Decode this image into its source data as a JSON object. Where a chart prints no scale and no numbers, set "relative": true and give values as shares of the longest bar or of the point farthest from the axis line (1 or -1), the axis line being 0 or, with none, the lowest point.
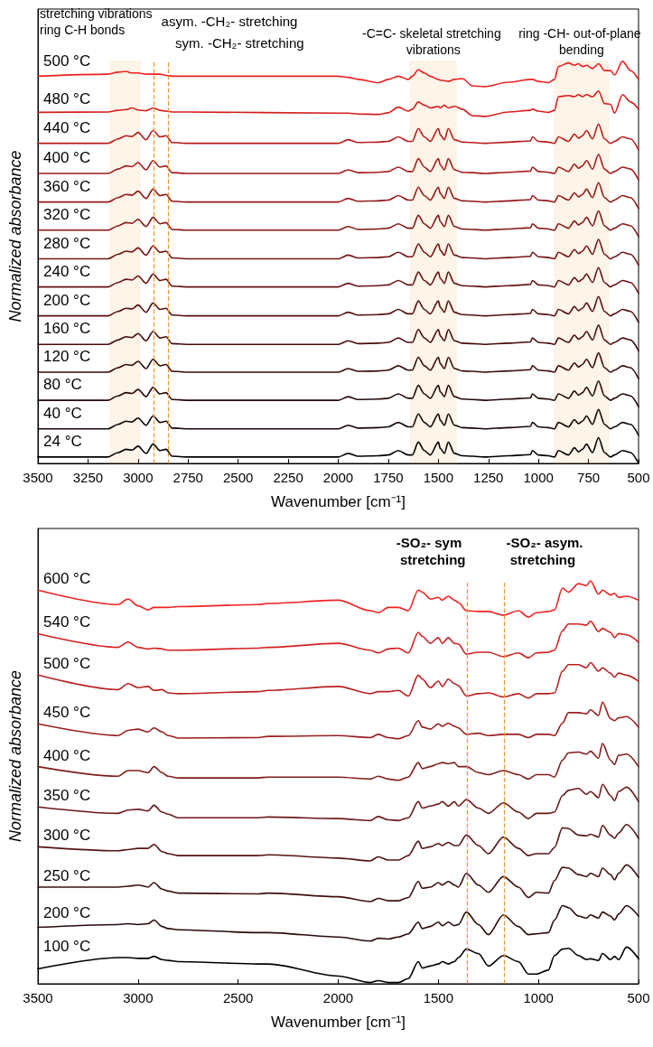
{
  "chart_data": [
    {
      "type": "line",
      "xlabel": "Wavenumber [cm⁻¹]",
      "ylabel": "Normalized absorbance",
      "relative": true,
      "tick_labels": "x",
      "marker": "none",
      "xlim": [
        3500,
        500
      ],
      "xticks": [
        3500,
        3250,
        3000,
        2750,
        2500,
        2250,
        2000,
        1750,
        1500,
        1250,
        1000,
        750,
        500
      ],
      "x": [
        3500,
        3150,
        3100,
        3060,
        3030,
        3000,
        2960,
        2925,
        2890,
        2860,
        2830,
        2750,
        2000,
        1950,
        1900,
        1800,
        1750,
        1700,
        1650,
        1630,
        1600,
        1570,
        1540,
        1500,
        1490,
        1470,
        1450,
        1420,
        1380,
        1330,
        1270,
        1150,
        1040,
        1030,
        1000,
        950,
        920,
        900,
        850,
        820,
        800,
        780,
        760,
        730,
        700,
        670,
        640,
        620,
        580,
        540,
        500
      ],
      "series": [
        {
          "name": "500 °C",
          "color": "#ee2020",
          "values": [
            0.963,
            0.968,
            0.973,
            0.975,
            0.971,
            0.971,
            0.968,
            0.968,
            0.968,
            0.965,
            0.963,
            0.963,
            0.963,
            0.96,
            0.955,
            0.947,
            0.955,
            0.963,
            0.955,
            0.963,
            0.979,
            0.971,
            0.963,
            0.955,
            0.953,
            0.952,
            0.95,
            0.955,
            0.957,
            0.939,
            0.937,
            0.948,
            0.955,
            0.955,
            0.95,
            0.947,
            0.955,
            0.987,
            0.996,
            0.99,
            0.994,
            0.987,
            0.99,
            0.982,
            0.994,
            0.977,
            0.977,
            0.966,
            1.0,
            0.977,
            0.955
          ]
        },
        {
          "name": "480 °C",
          "color": "#d41e1e",
          "values": [
            0.873,
            0.874,
            0.878,
            0.88,
            0.884,
            0.879,
            0.877,
            0.884,
            0.878,
            0.876,
            0.874,
            0.874,
            0.871,
            0.871,
            0.869,
            0.868,
            0.872,
            0.886,
            0.876,
            0.881,
            0.899,
            0.891,
            0.884,
            0.888,
            0.884,
            0.891,
            0.884,
            0.888,
            0.881,
            0.865,
            0.863,
            0.874,
            0.878,
            0.881,
            0.876,
            0.873,
            0.878,
            0.912,
            0.915,
            0.912,
            0.917,
            0.912,
            0.917,
            0.912,
            0.926,
            0.895,
            0.893,
            0.871,
            0.917,
            0.899,
            0.881
          ]
        },
        {
          "name": "440 °C",
          "color": "#b81c1c",
          "values": [
            0.796,
            0.796,
            0.807,
            0.815,
            0.813,
            0.823,
            0.805,
            0.828,
            0.812,
            0.815,
            0.798,
            0.796,
            0.796,
            0.805,
            0.798,
            0.799,
            0.801,
            0.812,
            0.801,
            0.801,
            0.833,
            0.812,
            0.801,
            0.833,
            0.817,
            0.805,
            0.833,
            0.805,
            0.799,
            0.798,
            0.796,
            0.799,
            0.802,
            0.812,
            0.801,
            0.799,
            0.796,
            0.812,
            0.801,
            0.819,
            0.809,
            0.815,
            0.828,
            0.807,
            0.844,
            0.807,
            0.796,
            0.801,
            0.812,
            0.807,
            0.78
          ]
        },
        {
          "name": "400 °C",
          "color": "#a41a1a",
          "values": [
            0.721,
            0.721,
            0.732,
            0.74,
            0.738,
            0.748,
            0.73,
            0.753,
            0.737,
            0.74,
            0.723,
            0.721,
            0.721,
            0.73,
            0.723,
            0.724,
            0.726,
            0.737,
            0.726,
            0.726,
            0.758,
            0.737,
            0.726,
            0.758,
            0.742,
            0.73,
            0.758,
            0.73,
            0.724,
            0.723,
            0.721,
            0.724,
            0.727,
            0.737,
            0.726,
            0.724,
            0.721,
            0.737,
            0.726,
            0.744,
            0.734,
            0.74,
            0.753,
            0.732,
            0.769,
            0.732,
            0.721,
            0.726,
            0.737,
            0.732,
            0.705
          ]
        },
        {
          "name": "360 °C",
          "color": "#941818",
          "values": [
            0.65,
            0.65,
            0.661,
            0.669,
            0.667,
            0.677,
            0.659,
            0.682,
            0.666,
            0.669,
            0.652,
            0.65,
            0.65,
            0.659,
            0.652,
            0.653,
            0.655,
            0.666,
            0.655,
            0.655,
            0.687,
            0.666,
            0.655,
            0.687,
            0.671,
            0.659,
            0.687,
            0.659,
            0.653,
            0.652,
            0.65,
            0.653,
            0.656,
            0.666,
            0.655,
            0.653,
            0.65,
            0.666,
            0.655,
            0.673,
            0.663,
            0.669,
            0.682,
            0.661,
            0.698,
            0.661,
            0.65,
            0.655,
            0.666,
            0.661,
            0.634
          ]
        },
        {
          "name": "320 °C",
          "color": "#821616",
          "values": [
            0.58,
            0.58,
            0.591,
            0.599,
            0.597,
            0.607,
            0.589,
            0.612,
            0.596,
            0.599,
            0.582,
            0.58,
            0.58,
            0.589,
            0.582,
            0.583,
            0.585,
            0.596,
            0.585,
            0.585,
            0.617,
            0.596,
            0.585,
            0.617,
            0.601,
            0.589,
            0.617,
            0.589,
            0.583,
            0.582,
            0.58,
            0.583,
            0.586,
            0.596,
            0.585,
            0.583,
            0.58,
            0.596,
            0.585,
            0.603,
            0.593,
            0.599,
            0.612,
            0.591,
            0.628,
            0.591,
            0.58,
            0.585,
            0.596,
            0.591,
            0.564
          ]
        },
        {
          "name": "280 °C",
          "color": "#741414",
          "values": [
            0.509,
            0.509,
            0.52,
            0.528,
            0.526,
            0.536,
            0.518,
            0.541,
            0.525,
            0.528,
            0.511,
            0.509,
            0.509,
            0.518,
            0.511,
            0.512,
            0.514,
            0.525,
            0.514,
            0.514,
            0.546,
            0.525,
            0.514,
            0.546,
            0.53,
            0.518,
            0.546,
            0.518,
            0.512,
            0.511,
            0.509,
            0.512,
            0.515,
            0.525,
            0.514,
            0.512,
            0.509,
            0.525,
            0.514,
            0.532,
            0.522,
            0.528,
            0.541,
            0.52,
            0.557,
            0.52,
            0.509,
            0.514,
            0.525,
            0.52,
            0.493
          ]
        },
        {
          "name": "240 °C",
          "color": "#661212",
          "values": [
            0.439,
            0.439,
            0.45,
            0.458,
            0.456,
            0.466,
            0.448,
            0.471,
            0.455,
            0.458,
            0.441,
            0.439,
            0.439,
            0.448,
            0.441,
            0.442,
            0.444,
            0.455,
            0.444,
            0.444,
            0.476,
            0.455,
            0.444,
            0.476,
            0.46,
            0.448,
            0.476,
            0.448,
            0.442,
            0.441,
            0.439,
            0.442,
            0.445,
            0.455,
            0.444,
            0.442,
            0.439,
            0.455,
            0.444,
            0.462,
            0.452,
            0.458,
            0.471,
            0.45,
            0.487,
            0.45,
            0.439,
            0.444,
            0.455,
            0.45,
            0.423
          ]
        },
        {
          "name": "200 °C",
          "color": "#560f0f",
          "values": [
            0.367,
            0.367,
            0.378,
            0.386,
            0.384,
            0.394,
            0.376,
            0.399,
            0.383,
            0.386,
            0.369,
            0.367,
            0.367,
            0.376,
            0.369,
            0.37,
            0.372,
            0.383,
            0.372,
            0.372,
            0.404,
            0.383,
            0.372,
            0.404,
            0.388,
            0.376,
            0.404,
            0.376,
            0.37,
            0.369,
            0.367,
            0.37,
            0.373,
            0.383,
            0.372,
            0.37,
            0.367,
            0.383,
            0.372,
            0.39,
            0.38,
            0.386,
            0.399,
            0.378,
            0.415,
            0.378,
            0.367,
            0.372,
            0.383,
            0.378,
            0.351
          ]
        },
        {
          "name": "160 °C",
          "color": "#460c0c",
          "values": [
            0.296,
            0.296,
            0.307,
            0.315,
            0.313,
            0.323,
            0.305,
            0.328,
            0.312,
            0.315,
            0.298,
            0.296,
            0.296,
            0.305,
            0.298,
            0.299,
            0.301,
            0.312,
            0.301,
            0.301,
            0.333,
            0.312,
            0.301,
            0.333,
            0.317,
            0.305,
            0.333,
            0.305,
            0.299,
            0.298,
            0.296,
            0.299,
            0.302,
            0.312,
            0.301,
            0.299,
            0.296,
            0.312,
            0.301,
            0.319,
            0.309,
            0.315,
            0.328,
            0.307,
            0.344,
            0.307,
            0.296,
            0.301,
            0.312,
            0.307,
            0.28
          ]
        },
        {
          "name": "120 °C",
          "color": "#360a0a",
          "values": [
            0.227,
            0.227,
            0.238,
            0.246,
            0.244,
            0.254,
            0.236,
            0.259,
            0.243,
            0.246,
            0.229,
            0.227,
            0.227,
            0.236,
            0.229,
            0.23,
            0.232,
            0.243,
            0.232,
            0.232,
            0.264,
            0.243,
            0.232,
            0.264,
            0.248,
            0.236,
            0.264,
            0.236,
            0.23,
            0.229,
            0.227,
            0.23,
            0.233,
            0.243,
            0.232,
            0.23,
            0.227,
            0.243,
            0.232,
            0.25,
            0.24,
            0.246,
            0.259,
            0.238,
            0.275,
            0.238,
            0.227,
            0.232,
            0.243,
            0.238,
            0.211
          ]
        },
        {
          "name": "80 °C",
          "color": "#260808",
          "values": [
            0.157,
            0.157,
            0.168,
            0.176,
            0.174,
            0.184,
            0.166,
            0.189,
            0.173,
            0.176,
            0.159,
            0.157,
            0.157,
            0.166,
            0.159,
            0.16,
            0.162,
            0.173,
            0.162,
            0.162,
            0.194,
            0.173,
            0.162,
            0.194,
            0.178,
            0.166,
            0.194,
            0.166,
            0.16,
            0.159,
            0.157,
            0.16,
            0.163,
            0.173,
            0.162,
            0.16,
            0.157,
            0.173,
            0.162,
            0.18,
            0.17,
            0.176,
            0.189,
            0.168,
            0.205,
            0.168,
            0.157,
            0.162,
            0.173,
            0.168,
            0.141
          ]
        },
        {
          "name": "40 °C",
          "color": "#140404",
          "values": [
            0.086,
            0.086,
            0.097,
            0.105,
            0.103,
            0.113,
            0.095,
            0.118,
            0.102,
            0.105,
            0.088,
            0.086,
            0.086,
            0.095,
            0.088,
            0.089,
            0.091,
            0.102,
            0.091,
            0.091,
            0.123,
            0.102,
            0.091,
            0.123,
            0.107,
            0.095,
            0.123,
            0.095,
            0.089,
            0.088,
            0.086,
            0.089,
            0.092,
            0.102,
            0.091,
            0.089,
            0.086,
            0.102,
            0.091,
            0.109,
            0.099,
            0.105,
            0.118,
            0.097,
            0.134,
            0.097,
            0.086,
            0.091,
            0.102,
            0.097,
            0.07
          ]
        },
        {
          "name": "24 °C",
          "color": "#000000",
          "values": [
            0.016,
            0.016,
            0.027,
            0.035,
            0.033,
            0.043,
            0.025,
            0.048,
            0.032,
            0.035,
            0.018,
            0.016,
            0.016,
            0.025,
            0.018,
            0.019,
            0.021,
            0.032,
            0.021,
            0.021,
            0.053,
            0.032,
            0.021,
            0.053,
            0.037,
            0.025,
            0.053,
            0.025,
            0.019,
            0.018,
            0.016,
            0.019,
            0.022,
            0.032,
            0.021,
            0.019,
            0.016,
            0.032,
            0.021,
            0.039,
            0.029,
            0.035,
            0.048,
            0.027,
            0.064,
            0.027,
            0.016,
            0.021,
            0.032,
            0.027,
            0.0
          ]
        }
      ],
      "bands": [
        {
          "axis": "x",
          "from": 3140,
          "to": 2990,
          "label": "stretching vibrations ring C-H bonds",
          "color": "#f7941d"
        },
        {
          "axis": "x",
          "from": 1640,
          "to": 1410,
          "label": "-C=C- skeletal stretching vibrations",
          "color": "#f7941d"
        },
        {
          "axis": "x",
          "from": 920,
          "to": 650,
          "label": "ring -CH- out-of-plane bending",
          "color": "#f7941d"
        }
      ],
      "ref_lines": [
        {
          "axis": "x",
          "value": 2920,
          "label": "asym. -CH₂- stretching",
          "color": "#f7941d",
          "line_style": "dashed"
        },
        {
          "axis": "x",
          "value": 2850,
          "label": "sym. -CH₂- stretching",
          "color": "#f7941d",
          "line_style": "dashed"
        }
      ]
    },
    {
      "type": "line",
      "xlabel": "Wavenumber [cm⁻¹]",
      "ylabel": "Normalized absorbance",
      "relative": true,
      "tick_labels": "x",
      "marker": "none",
      "xlim": [
        3500,
        500
      ],
      "xticks": [
        3500,
        3000,
        2500,
        2000,
        1500,
        1000,
        500
      ],
      "x": [
        3500,
        3100,
        3050,
        3000,
        2950,
        2920,
        2880,
        2850,
        2800,
        2400,
        2350,
        2000,
        1840,
        1800,
        1750,
        1700,
        1650,
        1600,
        1580,
        1540,
        1500,
        1480,
        1450,
        1420,
        1400,
        1360,
        1300,
        1250,
        1175,
        1100,
        1050,
        1010,
        950,
        920,
        880,
        850,
        800,
        760,
        740,
        700,
        680,
        640,
        620,
        600,
        560,
        500
      ],
      "series": [
        {
          "name": "600 °C",
          "color": "#ee2222",
          "values": [
            0.977,
            0.941,
            0.955,
            0.938,
            0.928,
            0.934,
            0.934,
            0.934,
            0.936,
            0.941,
            0.944,
            0.952,
            0.926,
            0.921,
            0.934,
            0.934,
            0.926,
            0.977,
            0.972,
            0.955,
            0.959,
            0.952,
            0.962,
            0.952,
            0.946,
            0.926,
            0.924,
            0.924,
            0.915,
            0.926,
            0.91,
            0.921,
            0.924,
            0.928,
            0.982,
            0.972,
            0.993,
            0.988,
            1.0,
            0.967,
            0.977,
            0.965,
            0.969,
            0.959,
            0.962,
            0.952
          ]
        },
        {
          "name": "540 °C",
          "color": "#d42020",
          "values": [
            0.869,
            0.835,
            0.848,
            0.835,
            0.831,
            0.833,
            0.831,
            0.828,
            0.828,
            0.833,
            0.835,
            0.845,
            0.828,
            0.821,
            0.831,
            0.833,
            0.821,
            0.872,
            0.862,
            0.845,
            0.859,
            0.845,
            0.859,
            0.845,
            0.843,
            0.818,
            0.823,
            0.823,
            0.812,
            0.821,
            0.809,
            0.821,
            0.823,
            0.828,
            0.876,
            0.893,
            0.893,
            0.89,
            0.9,
            0.874,
            0.882,
            0.872,
            0.859,
            0.869,
            0.866,
            0.848
          ]
        },
        {
          "name": "500 °C",
          "color": "#b82020",
          "values": [
            0.766,
            0.73,
            0.745,
            0.735,
            0.738,
            0.728,
            0.73,
            0.722,
            0.72,
            0.725,
            0.728,
            0.738,
            0.72,
            0.725,
            0.725,
            0.728,
            0.714,
            0.766,
            0.756,
            0.735,
            0.751,
            0.738,
            0.756,
            0.745,
            0.74,
            0.714,
            0.72,
            0.722,
            0.712,
            0.72,
            0.709,
            0.72,
            0.72,
            0.722,
            0.776,
            0.792,
            0.792,
            0.784,
            0.797,
            0.776,
            0.784,
            0.771,
            0.761,
            0.771,
            0.766,
            0.751
          ]
        },
        {
          "name": "450 °C",
          "color": "#9a1e1e",
          "values": [
            0.645,
            0.616,
            0.629,
            0.632,
            0.625,
            0.635,
            0.625,
            0.616,
            0.61,
            0.611,
            0.614,
            0.616,
            0.611,
            0.619,
            0.611,
            0.608,
            0.616,
            0.653,
            0.637,
            0.632,
            0.645,
            0.639,
            0.647,
            0.639,
            0.635,
            0.619,
            0.622,
            0.616,
            0.619,
            0.619,
            0.611,
            0.619,
            0.619,
            0.616,
            0.647,
            0.673,
            0.673,
            0.67,
            0.68,
            0.666,
            0.699,
            0.658,
            0.653,
            0.66,
            0.663,
            0.637
          ]
        },
        {
          "name": "400 °C",
          "color": "#801c1c",
          "values": [
            0.539,
            0.515,
            0.529,
            0.529,
            0.524,
            0.539,
            0.524,
            0.515,
            0.511,
            0.511,
            0.513,
            0.513,
            0.508,
            0.515,
            0.508,
            0.505,
            0.513,
            0.549,
            0.534,
            0.539,
            0.546,
            0.549,
            0.546,
            0.549,
            0.539,
            0.539,
            0.524,
            0.519,
            0.529,
            0.519,
            0.508,
            0.519,
            0.519,
            0.513,
            0.555,
            0.573,
            0.575,
            0.57,
            0.577,
            0.56,
            0.596,
            0.555,
            0.544,
            0.567,
            0.57,
            0.539
          ]
        },
        {
          "name": "350 °C",
          "color": "#6a1818",
          "values": [
            0.439,
            0.423,
            0.431,
            0.433,
            0.429,
            0.443,
            0.426,
            0.421,
            0.412,
            0.412,
            0.414,
            0.41,
            0.405,
            0.415,
            0.407,
            0.405,
            0.412,
            0.452,
            0.436,
            0.441,
            0.446,
            0.452,
            0.441,
            0.452,
            0.441,
            0.457,
            0.436,
            0.423,
            0.449,
            0.426,
            0.41,
            0.423,
            0.423,
            0.426,
            0.467,
            0.48,
            0.485,
            0.47,
            0.477,
            0.462,
            0.495,
            0.467,
            0.454,
            0.477,
            0.488,
            0.452
          ]
        },
        {
          "name": "300 °C",
          "color": "#551414",
          "values": [
            0.34,
            0.33,
            0.333,
            0.336,
            0.336,
            0.346,
            0.328,
            0.323,
            0.318,
            0.318,
            0.32,
            0.312,
            0.305,
            0.315,
            0.307,
            0.307,
            0.318,
            0.354,
            0.336,
            0.34,
            0.348,
            0.343,
            0.351,
            0.343,
            0.343,
            0.369,
            0.343,
            0.323,
            0.364,
            0.336,
            0.318,
            0.323,
            0.323,
            0.338,
            0.387,
            0.385,
            0.369,
            0.367,
            0.371,
            0.364,
            0.393,
            0.369,
            0.361,
            0.374,
            0.395,
            0.361
          ]
        },
        {
          "name": "250 °C",
          "color": "#3f1010",
          "values": [
            0.24,
            0.24,
            0.242,
            0.245,
            0.24,
            0.251,
            0.235,
            0.23,
            0.225,
            0.223,
            0.225,
            0.216,
            0.204,
            0.212,
            0.206,
            0.206,
            0.214,
            0.254,
            0.237,
            0.24,
            0.251,
            0.245,
            0.254,
            0.245,
            0.24,
            0.274,
            0.245,
            0.227,
            0.266,
            0.24,
            0.214,
            0.227,
            0.225,
            0.256,
            0.289,
            0.287,
            0.271,
            0.266,
            0.274,
            0.266,
            0.287,
            0.271,
            0.258,
            0.274,
            0.295,
            0.264
          ]
        },
        {
          "name": "200 °C",
          "color": "#2a0a0a",
          "values": [
            0.14,
            0.147,
            0.149,
            0.147,
            0.149,
            0.158,
            0.142,
            0.137,
            0.134,
            0.127,
            0.127,
            0.116,
            0.106,
            0.113,
            0.111,
            0.116,
            0.124,
            0.153,
            0.137,
            0.142,
            0.153,
            0.144,
            0.153,
            0.144,
            0.147,
            0.178,
            0.147,
            0.122,
            0.171,
            0.142,
            0.122,
            0.124,
            0.127,
            0.158,
            0.194,
            0.189,
            0.168,
            0.163,
            0.171,
            0.163,
            0.178,
            0.168,
            0.158,
            0.173,
            0.194,
            0.168
          ]
        },
        {
          "name": "100 °C",
          "color": "#000000",
          "values": [
            0.037,
            0.065,
            0.065,
            0.063,
            0.063,
            0.068,
            0.06,
            0.058,
            0.055,
            0.049,
            0.049,
            0.019,
            0.003,
            0.008,
            0.003,
            0.003,
            0.013,
            0.055,
            0.039,
            0.044,
            0.049,
            0.055,
            0.049,
            0.055,
            0.065,
            0.086,
            0.075,
            0.044,
            0.07,
            0.055,
            0.024,
            0.024,
            0.034,
            0.07,
            0.086,
            0.088,
            0.07,
            0.06,
            0.062,
            0.058,
            0.075,
            0.06,
            0.068,
            0.06,
            0.091,
            0.062
          ]
        }
      ],
      "ref_lines": [
        {
          "axis": "x",
          "value": 1355,
          "label": "-SO₂- sym stretching",
          "color": "#f7941d",
          "line_style": "dashed"
        },
        {
          "axis": "x",
          "value": 1170,
          "label": "-SO₂- asym. stretching",
          "color": "#f7941d",
          "line_style": "dashed"
        }
      ]
    }
  ]
}
